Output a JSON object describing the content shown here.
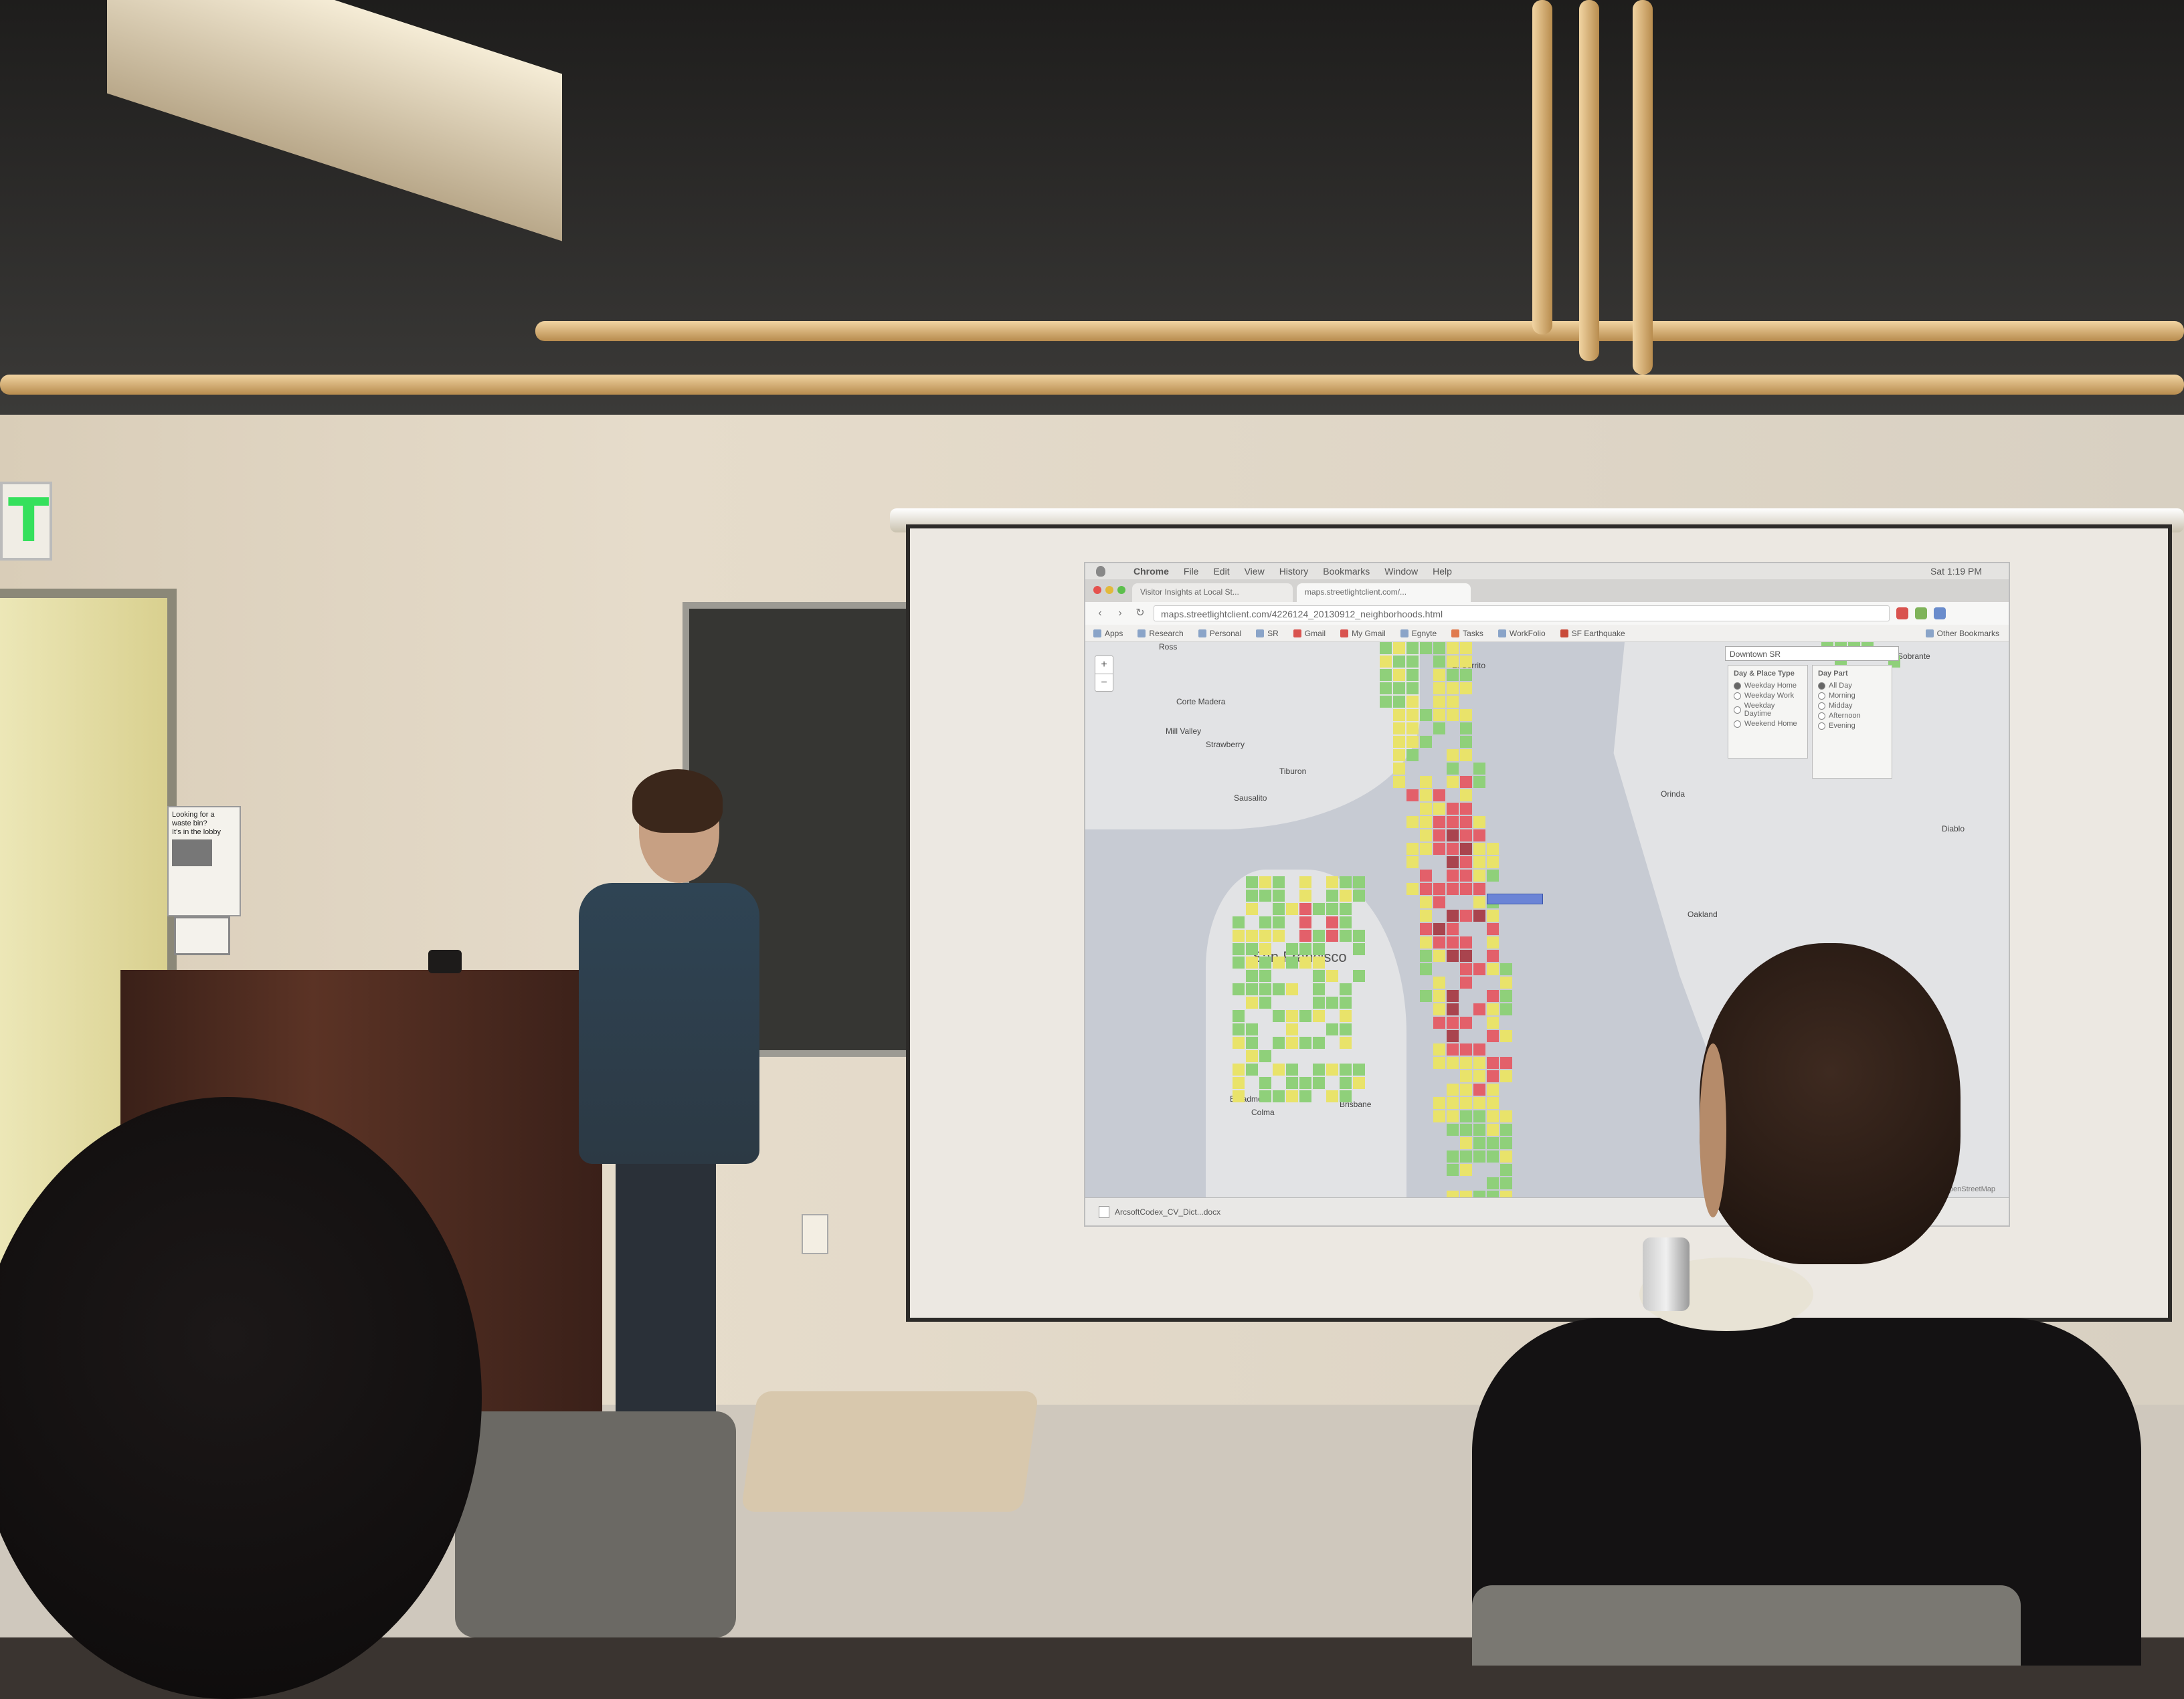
{
  "room": {
    "exit_sign_text": "T",
    "poster_lines": [
      "Looking for a",
      "waste bin?",
      "It's in the lobby"
    ]
  },
  "browser": {
    "menu": [
      "Chrome",
      "File",
      "Edit",
      "View",
      "History",
      "Bookmarks",
      "Window",
      "Help"
    ],
    "clock": "Sat 1:19 PM",
    "tabs": [
      "Visitor Insights at Local St...",
      "maps.streetlightclient.com/..."
    ],
    "url": "maps.streetlightclient.com/4226124_20130912_neighborhoods.html",
    "bookmarks": [
      "Apps",
      "Research",
      "Personal",
      "SR",
      "Gmail",
      "My Gmail",
      "Egnyte",
      "Tasks",
      "WorkFolio",
      "SF Earthquake"
    ],
    "other_bookmarks": "Other Bookmarks",
    "download_item": "ArcsoftCodex_CV_Dict...docx"
  },
  "map": {
    "zoom_in": "+",
    "zoom_out": "−",
    "dropdown_value": "Downtown SR",
    "places": {
      "ross": "Ross",
      "corte_madera": "Corte Madera",
      "mill_valley": "Mill Valley",
      "strawberry": "Strawberry",
      "tiburon": "Tiburon",
      "sausalito": "Sausalito",
      "san_francisco": "San Francisco",
      "broadmoor": "Broadmoor",
      "colma": "Colma",
      "brisbane": "Brisbane",
      "oakland": "Oakland",
      "el_sobrante": "El Sobrante",
      "orinda": "Orinda",
      "el_cerrito": "El Cerrito",
      "diablo": "Diablo"
    },
    "day_panel": {
      "title": "Day & Place Type",
      "options": [
        "Weekday Home",
        "Weekday Work",
        "Weekday Daytime",
        "Weekend Home"
      ]
    },
    "time_panel": {
      "title": "Day Part",
      "options": [
        "All Day",
        "Morning",
        "Midday",
        "Afternoon",
        "Evening"
      ]
    },
    "attribution": "Leaflet | Map tiles by Stamen Design, under CC BY 3.0. Data by OpenStreetMap",
    "heat_colors": {
      "low": "#8fd07a",
      "mid": "#e9e36a",
      "high": "#e3606a",
      "peak": "#a9444e"
    }
  }
}
